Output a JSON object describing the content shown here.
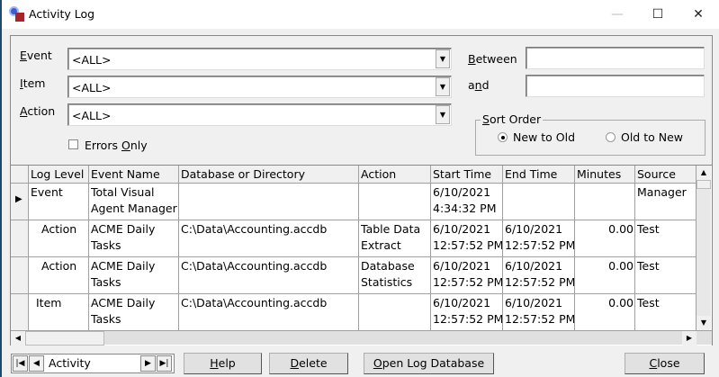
{
  "window": {
    "title": "Activity Log",
    "minimize": "—",
    "maximize": "☐",
    "close": "✕"
  },
  "filters": {
    "event": {
      "label_key": "E",
      "label_rest": "vent",
      "value": "<ALL>"
    },
    "item": {
      "label_key": "I",
      "label_rest": "tem",
      "value": "<ALL>"
    },
    "action": {
      "label_key": "A",
      "label_rest": "ction",
      "value": "<ALL>"
    },
    "between": {
      "label_key": "B",
      "label_rest": "etween",
      "value": ""
    },
    "and": {
      "label_pre": "a",
      "label_key": "n",
      "label_rest": "d",
      "value": ""
    },
    "errors_only": {
      "label_pre": "Errors ",
      "label_key": "O",
      "label_rest": "nly",
      "checked": false
    }
  },
  "sort_order": {
    "legend_key": "S",
    "legend_rest": "ort Order",
    "options": [
      "New to Old",
      "Old to New"
    ],
    "selected": "New to Old"
  },
  "grid": {
    "columns": [
      "Log Level",
      "Event Name",
      "Database or Directory",
      "Action",
      "Start Time",
      "End Time",
      "Minutes",
      "Source"
    ],
    "rows": [
      {
        "current": true,
        "level": "Event",
        "event": "Total Visual\nAgent Manager",
        "db": "",
        "action": "",
        "start": "6/10/2021\n4:34:32 PM",
        "end": "",
        "minutes": "",
        "source": "Manager"
      },
      {
        "current": false,
        "level": "Action",
        "event": "ACME Daily\nTasks",
        "db": "C:\\Data\\Accounting.accdb",
        "action": "Table Data\nExtract",
        "start": "6/10/2021\n12:57:52 PM",
        "end": "6/10/2021\n12:57:52 PM",
        "minutes": "0.00",
        "source": "Test"
      },
      {
        "current": false,
        "level": "Action",
        "event": "ACME Daily\nTasks",
        "db": "C:\\Data\\Accounting.accdb",
        "action": "Database\nStatistics",
        "start": "6/10/2021\n12:57:52 PM",
        "end": "6/10/2021\n12:57:52 PM",
        "minutes": "0.00",
        "source": "Test"
      },
      {
        "current": false,
        "level": "Item",
        "event": "ACME Daily\nTasks",
        "db": "C:\\Data\\Accounting.accdb",
        "action": "",
        "start": "6/10/2021\n12:57:52 PM",
        "end": "6/10/2021\n12:57:52 PM",
        "minutes": "0.00",
        "source": "Test"
      }
    ]
  },
  "navigator": {
    "value": "Activity"
  },
  "buttons": {
    "help": {
      "key": "H",
      "rest": "elp"
    },
    "delete": {
      "key": "D",
      "rest": "elete"
    },
    "open_log": {
      "key": "O",
      "rest": "pen Log Database"
    },
    "close": {
      "key": "C",
      "rest": "lose"
    }
  }
}
